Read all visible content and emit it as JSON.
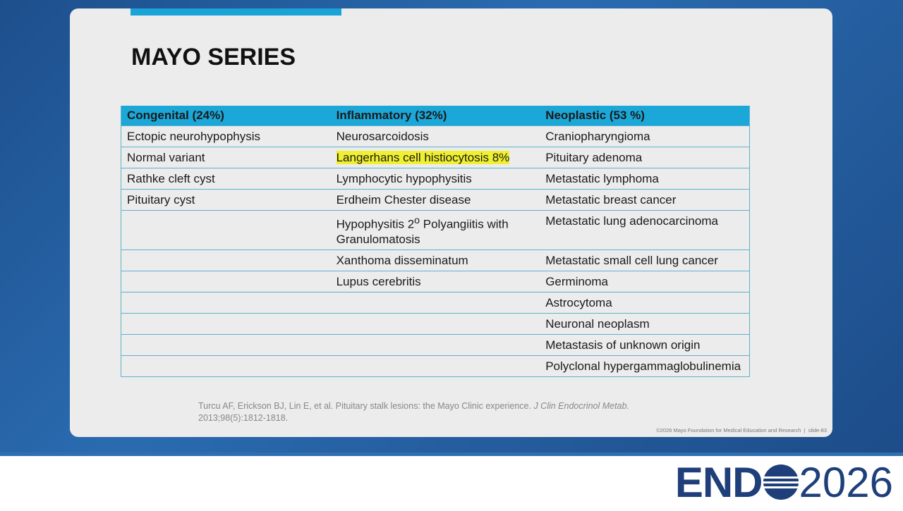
{
  "slide": {
    "title": "MAYO SERIES",
    "table": {
      "headers": [
        "Congenital (24%)",
        "Inflammatory (32%)",
        "Neoplastic (53 %)"
      ],
      "rows": [
        [
          "Ectopic neurohypophysis",
          "Neurosarcoidosis",
          "Craniopharyngioma"
        ],
        [
          "Normal variant",
          "Langerhans cell histiocytosis 8%",
          "Pituitary adenoma"
        ],
        [
          "Rathke cleft cyst",
          "Lymphocytic hypophysitis",
          "Metastatic lymphoma"
        ],
        [
          "Pituitary cyst",
          "Erdheim Chester disease",
          "Metastatic breast cancer"
        ],
        [
          null,
          {
            "before": "Hypophysitis 2",
            "sup": "o",
            "after": " Polyangiitis with Granulomatosis"
          },
          "Metastatic lung adenocarcinoma"
        ],
        [
          null,
          "Xanthoma disseminatum",
          "Metastatic small cell lung cancer"
        ],
        [
          null,
          "Lupus cerebritis",
          "Germinoma"
        ],
        [
          null,
          null,
          "Astrocytoma"
        ],
        [
          null,
          null,
          "Neuronal neoplasm"
        ],
        [
          null,
          null,
          "Metastasis of unknown origin"
        ],
        [
          null,
          null,
          "Polyclonal hypergammaglobulinemia"
        ]
      ]
    },
    "citation": {
      "text": "Turcu AF, Erickson BJ, Lin E, et al. Pituitary stalk lesions: the Mayo Clinic experience.",
      "journal": "J Clin Endocrinol Metab.",
      "details": "2013;98(5):1812-1818."
    },
    "footer": {
      "copyright": "©2026 Mayo Foundation for Medical Education and Research",
      "slide_number": "slide-83"
    }
  },
  "logo": {
    "left": "END",
    "right": "2026"
  }
}
